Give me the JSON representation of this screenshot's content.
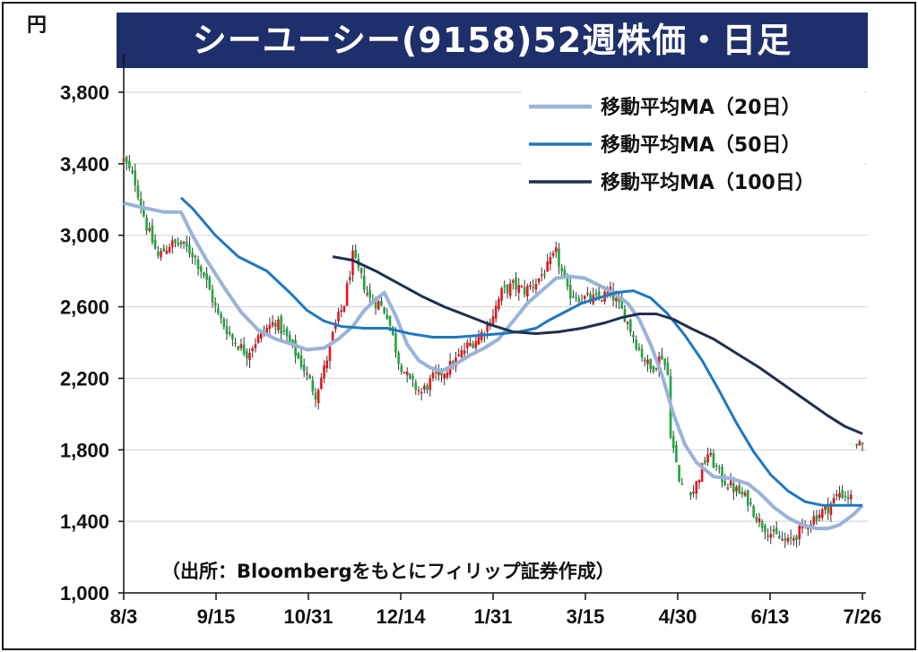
{
  "chart_data": {
    "type": "candlestick",
    "title": "シーユーシー(9158)52週株価・日足",
    "y_unit": "円",
    "ylim": [
      1000,
      3900
    ],
    "y_ticks": [
      1000,
      1400,
      1800,
      2200,
      2600,
      3000,
      3400,
      3800
    ],
    "y_tick_labels": [
      "1,000",
      "1,400",
      "1,800",
      "2,200",
      "2,600",
      "3,000",
      "3,400",
      "3,800"
    ],
    "x_tick_labels": [
      "8/3",
      "9/15",
      "10/31",
      "12/14",
      "1/31",
      "3/15",
      "4/30",
      "6/13",
      "7/26"
    ],
    "candle_colors": {
      "up": "#e8141c",
      "down": "#1ea83c"
    },
    "price_path": [
      [
        0,
        3420
      ],
      [
        4,
        3300
      ],
      [
        8,
        3050
      ],
      [
        12,
        2880
      ],
      [
        16,
        2950
      ],
      [
        20,
        2950
      ],
      [
        24,
        2900
      ],
      [
        28,
        2780
      ],
      [
        33,
        2550
      ],
      [
        38,
        2420
      ],
      [
        43,
        2340
      ],
      [
        48,
        2450
      ],
      [
        53,
        2520
      ],
      [
        58,
        2400
      ],
      [
        63,
        2250
      ],
      [
        67,
        2110
      ],
      [
        70,
        2250
      ],
      [
        74,
        2500
      ],
      [
        77,
        2620
      ],
      [
        80,
        2880
      ],
      [
        83,
        2760
      ],
      [
        86,
        2640
      ],
      [
        89,
        2620
      ],
      [
        92,
        2560
      ],
      [
        96,
        2300
      ],
      [
        100,
        2180
      ],
      [
        104,
        2120
      ],
      [
        108,
        2200
      ],
      [
        112,
        2240
      ],
      [
        116,
        2300
      ],
      [
        120,
        2380
      ],
      [
        124,
        2430
      ],
      [
        128,
        2520
      ],
      [
        132,
        2680
      ],
      [
        136,
        2720
      ],
      [
        140,
        2690
      ],
      [
        144,
        2740
      ],
      [
        148,
        2820
      ],
      [
        151,
        2900
      ],
      [
        155,
        2680
      ],
      [
        160,
        2650
      ],
      [
        165,
        2640
      ],
      [
        170,
        2680
      ],
      [
        175,
        2550
      ],
      [
        180,
        2360
      ],
      [
        184,
        2250
      ],
      [
        188,
        2330
      ],
      [
        190,
        2220
      ],
      [
        191,
        1900
      ],
      [
        194,
        1620
      ],
      [
        199,
        1570
      ],
      [
        204,
        1780
      ],
      [
        209,
        1640
      ],
      [
        214,
        1570
      ],
      [
        218,
        1520
      ],
      [
        222,
        1400
      ],
      [
        227,
        1320
      ],
      [
        232,
        1280
      ],
      [
        237,
        1360
      ],
      [
        241,
        1420
      ],
      [
        246,
        1480
      ],
      [
        250,
        1560
      ],
      [
        254,
        1530
      ],
      [
        256,
        1840
      ],
      [
        258,
        1800
      ]
    ],
    "series": [
      {
        "name": "移動平均MA（20日）",
        "color": "#9ab3d8",
        "width": 4,
        "points": [
          [
            0,
            3180
          ],
          [
            8,
            3150
          ],
          [
            14,
            3130
          ],
          [
            20,
            3130
          ],
          [
            24,
            3000
          ],
          [
            29,
            2860
          ],
          [
            35,
            2710
          ],
          [
            41,
            2570
          ],
          [
            47,
            2470
          ],
          [
            53,
            2420
          ],
          [
            59,
            2390
          ],
          [
            64,
            2360
          ],
          [
            70,
            2370
          ],
          [
            75,
            2420
          ],
          [
            80,
            2490
          ],
          [
            84,
            2580
          ],
          [
            88,
            2640
          ],
          [
            91,
            2680
          ],
          [
            95,
            2550
          ],
          [
            99,
            2390
          ],
          [
            103,
            2300
          ],
          [
            107,
            2260
          ],
          [
            111,
            2240
          ],
          [
            116,
            2280
          ],
          [
            121,
            2330
          ],
          [
            126,
            2370
          ],
          [
            131,
            2420
          ],
          [
            136,
            2520
          ],
          [
            141,
            2620
          ],
          [
            146,
            2690
          ],
          [
            151,
            2760
          ],
          [
            156,
            2770
          ],
          [
            161,
            2760
          ],
          [
            166,
            2720
          ],
          [
            171,
            2680
          ],
          [
            176,
            2620
          ],
          [
            180,
            2530
          ],
          [
            184,
            2390
          ],
          [
            188,
            2220
          ],
          [
            192,
            2000
          ],
          [
            196,
            1830
          ],
          [
            200,
            1730
          ],
          [
            206,
            1650
          ],
          [
            212,
            1640
          ],
          [
            218,
            1610
          ],
          [
            222,
            1560
          ],
          [
            227,
            1480
          ],
          [
            232,
            1420
          ],
          [
            237,
            1380
          ],
          [
            242,
            1360
          ],
          [
            246,
            1360
          ],
          [
            250,
            1380
          ],
          [
            255,
            1440
          ],
          [
            258,
            1490
          ]
        ]
      },
      {
        "name": "移動平均MA（50日）",
        "color": "#1f78c1",
        "width": 3,
        "points": [
          [
            20,
            3210
          ],
          [
            24,
            3150
          ],
          [
            32,
            3000
          ],
          [
            40,
            2880
          ],
          [
            50,
            2800
          ],
          [
            58,
            2680
          ],
          [
            64,
            2580
          ],
          [
            70,
            2520
          ],
          [
            76,
            2490
          ],
          [
            84,
            2480
          ],
          [
            92,
            2480
          ],
          [
            100,
            2450
          ],
          [
            108,
            2430
          ],
          [
            116,
            2430
          ],
          [
            124,
            2440
          ],
          [
            132,
            2450
          ],
          [
            138,
            2460
          ],
          [
            144,
            2480
          ],
          [
            148,
            2520
          ],
          [
            154,
            2570
          ],
          [
            160,
            2620
          ],
          [
            166,
            2650
          ],
          [
            172,
            2680
          ],
          [
            178,
            2690
          ],
          [
            184,
            2650
          ],
          [
            190,
            2560
          ],
          [
            196,
            2440
          ],
          [
            202,
            2300
          ],
          [
            208,
            2130
          ],
          [
            214,
            1950
          ],
          [
            220,
            1790
          ],
          [
            226,
            1660
          ],
          [
            232,
            1570
          ],
          [
            238,
            1510
          ],
          [
            244,
            1490
          ],
          [
            250,
            1490
          ],
          [
            255,
            1490
          ],
          [
            258,
            1490
          ]
        ]
      },
      {
        "name": "移動平均MA（100日）",
        "color": "#1f2f4f",
        "width": 3,
        "points": [
          [
            73,
            2880
          ],
          [
            80,
            2860
          ],
          [
            88,
            2800
          ],
          [
            96,
            2730
          ],
          [
            104,
            2660
          ],
          [
            112,
            2600
          ],
          [
            120,
            2550
          ],
          [
            128,
            2500
          ],
          [
            136,
            2460
          ],
          [
            144,
            2450
          ],
          [
            152,
            2460
          ],
          [
            160,
            2480
          ],
          [
            168,
            2510
          ],
          [
            174,
            2540
          ],
          [
            180,
            2560
          ],
          [
            186,
            2560
          ],
          [
            192,
            2530
          ],
          [
            198,
            2480
          ],
          [
            206,
            2420
          ],
          [
            214,
            2340
          ],
          [
            222,
            2260
          ],
          [
            230,
            2170
          ],
          [
            238,
            2080
          ],
          [
            246,
            1990
          ],
          [
            252,
            1930
          ],
          [
            258,
            1890
          ]
        ]
      }
    ]
  },
  "source": "（出所：Bloombergをもとにフィリップ証券作成）"
}
